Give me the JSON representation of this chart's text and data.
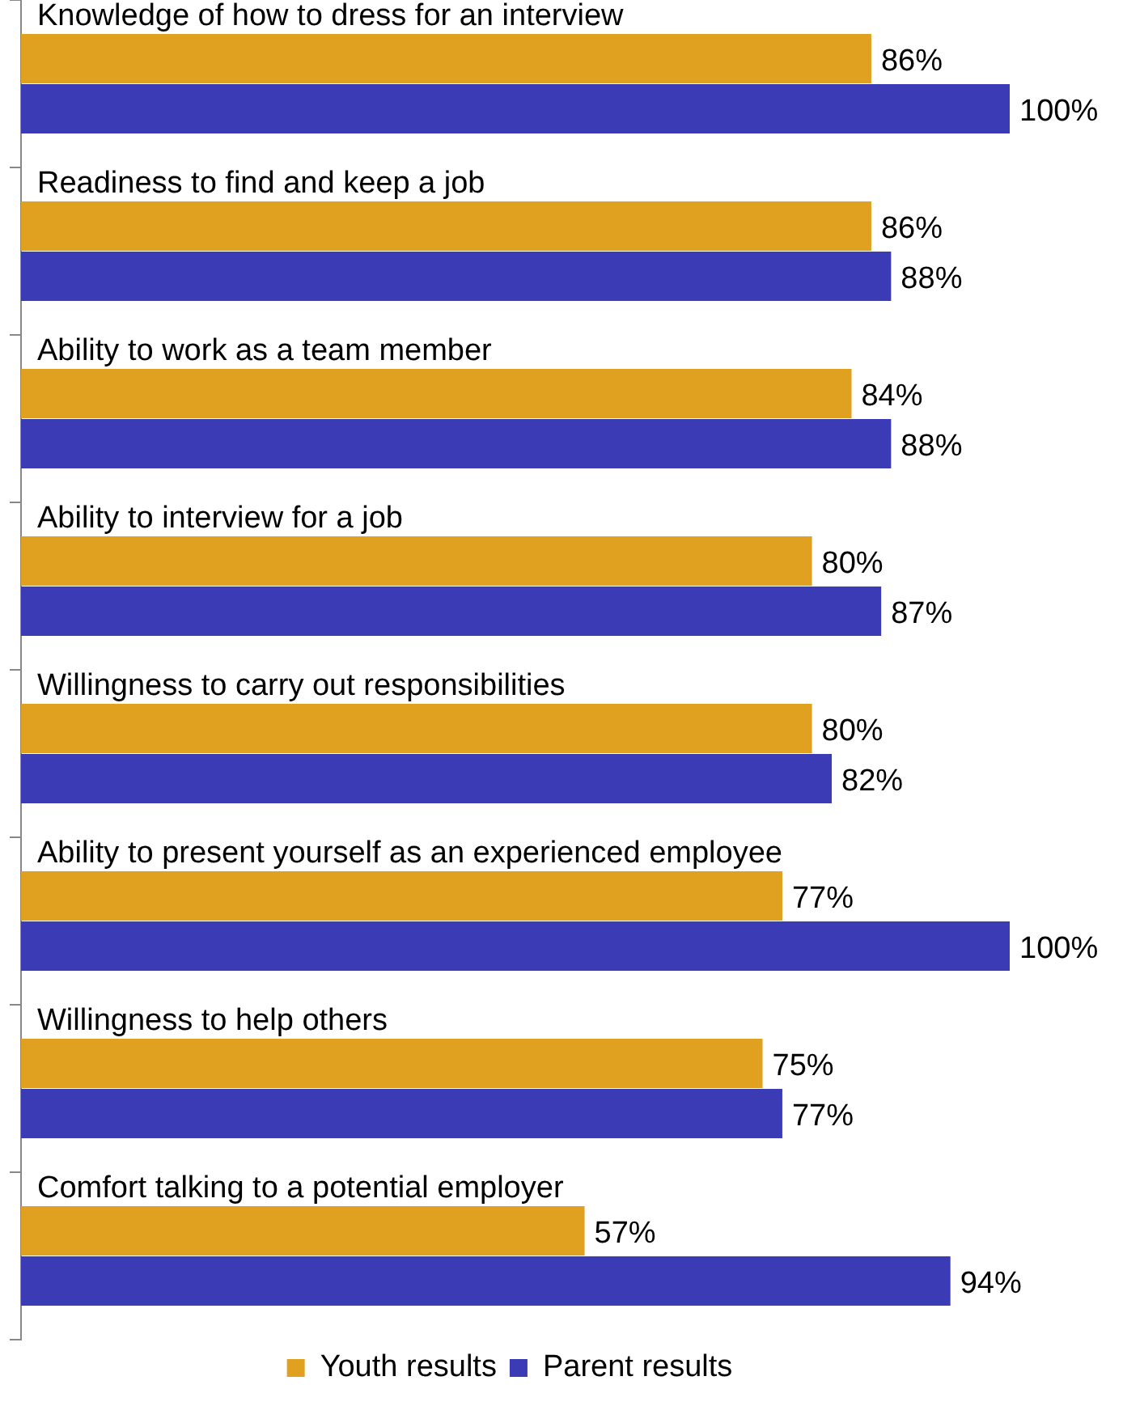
{
  "chart_data": {
    "type": "bar",
    "orientation": "horizontal",
    "categories": [
      "Knowledge of how to dress for an interview",
      "Readiness to find and keep a job",
      "Ability to work as a team member",
      "Ability to interview for a job",
      "Willingness to carry out responsibilities",
      "Ability to present yourself as an experienced employee",
      "Willingness to help others",
      "Comfort talking to a potential employer"
    ],
    "series": [
      {
        "name": "Youth results",
        "color": "#e0a020",
        "values": [
          86,
          86,
          84,
          80,
          80,
          77,
          75,
          57
        ],
        "value_labels": [
          "86%",
          "86%",
          "84%",
          "80%",
          "80%",
          "77%",
          "75%",
          "57%"
        ]
      },
      {
        "name": "Parent results",
        "color": "#3b3bb5",
        "values": [
          100,
          88,
          88,
          87,
          82,
          100,
          77,
          94
        ],
        "value_labels": [
          "100%",
          "88%",
          "88%",
          "87%",
          "82%",
          "100%",
          "77%",
          "94%"
        ]
      }
    ],
    "legend": "bottom",
    "grid": false
  }
}
